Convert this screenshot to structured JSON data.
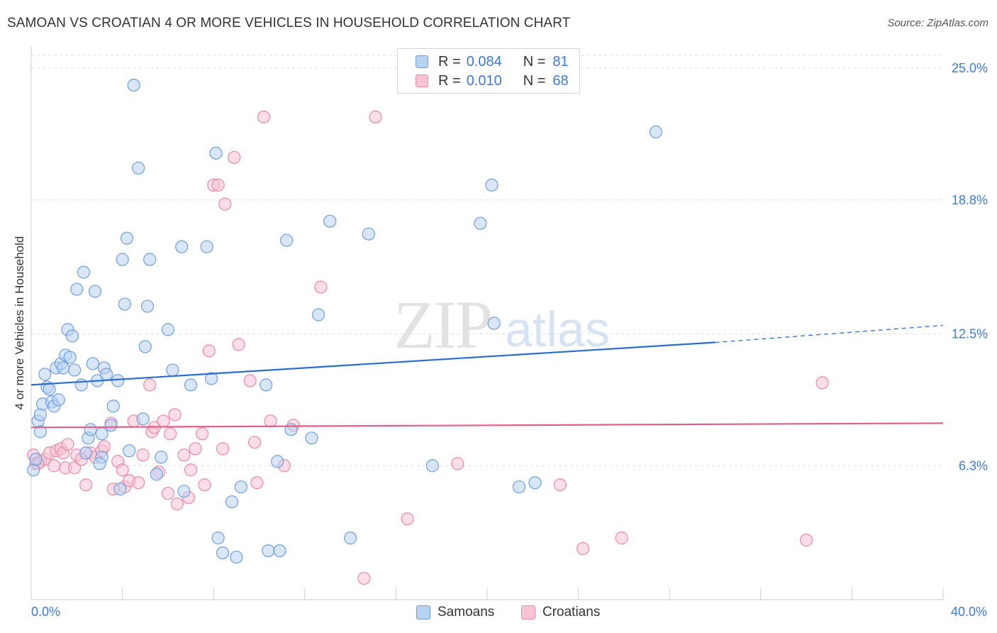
{
  "title": "SAMOAN VS CROATIAN 4 OR MORE VEHICLES IN HOUSEHOLD CORRELATION CHART",
  "source": "Source: ZipAtlas.com",
  "watermark": {
    "zip": "ZIP",
    "atlas": "atlas"
  },
  "colors": {
    "samoan_fill": "#b8d2f2",
    "samoan_stroke": "#6f9fdb",
    "samoan_line": "#2a6fd0",
    "croatian_fill": "#f8c3d3",
    "croatian_stroke": "#e88aa8",
    "croatian_line": "#e0608a",
    "axis_label": "#3d7ad6",
    "grid": "#dddddd"
  },
  "legend_top": {
    "rows": [
      {
        "r_label": "R =",
        "r_value": "0.084",
        "n_label": "N =",
        "n_value": "81"
      },
      {
        "r_label": "R =",
        "r_value": "0.010",
        "n_label": "N =",
        "n_value": "68"
      }
    ]
  },
  "legend_bottom": [
    "Samoans",
    "Croatians"
  ],
  "chart_data": {
    "type": "scatter",
    "title": "SAMOAN VS CROATIAN 4 OR MORE VEHICLES IN HOUSEHOLD CORRELATION CHART",
    "xlabel": "",
    "ylabel": "4 or more Vehicles in Household",
    "xlim": [
      0,
      40
    ],
    "ylim": [
      0,
      25
    ],
    "x_tick_labels": [
      "0.0%",
      "40.0%"
    ],
    "y_ticks": [
      6.3,
      12.5,
      18.8,
      25.0
    ],
    "y_tick_labels": [
      "6.3%",
      "12.5%",
      "18.8%",
      "25.0%"
    ],
    "grid": true,
    "legend_placement": "top-center",
    "series": [
      {
        "name": "Samoans",
        "r": 0.084,
        "n": 81,
        "trend": {
          "x_start": 0,
          "y_start": 10.1,
          "x_solid_end": 30.0,
          "y_solid_end": 12.1,
          "x_end": 40,
          "y_end": 12.9
        },
        "points": [
          [
            0.1,
            6.1
          ],
          [
            0.3,
            8.4
          ],
          [
            0.4,
            8.7
          ],
          [
            0.5,
            9.2
          ],
          [
            0.6,
            10.6
          ],
          [
            0.7,
            10.0
          ],
          [
            0.8,
            9.9
          ],
          [
            0.9,
            9.3
          ],
          [
            1.0,
            9.1
          ],
          [
            1.1,
            10.9
          ],
          [
            1.2,
            9.4
          ],
          [
            1.3,
            11.1
          ],
          [
            1.4,
            10.9
          ],
          [
            1.5,
            11.5
          ],
          [
            1.6,
            12.7
          ],
          [
            1.7,
            11.4
          ],
          [
            1.8,
            12.4
          ],
          [
            1.9,
            10.8
          ],
          [
            2.0,
            14.6
          ],
          [
            2.2,
            10.1
          ],
          [
            2.3,
            15.4
          ],
          [
            2.5,
            7.6
          ],
          [
            2.6,
            8.0
          ],
          [
            2.7,
            11.1
          ],
          [
            2.8,
            14.5
          ],
          [
            2.9,
            10.3
          ],
          [
            3.1,
            7.8
          ],
          [
            3.1,
            6.7
          ],
          [
            3.2,
            10.9
          ],
          [
            3.3,
            10.6
          ],
          [
            3.5,
            8.2
          ],
          [
            3.6,
            9.1
          ],
          [
            3.8,
            10.3
          ],
          [
            3.9,
            5.2
          ],
          [
            4.0,
            16.0
          ],
          [
            4.1,
            13.9
          ],
          [
            4.2,
            17.0
          ],
          [
            4.3,
            7.0
          ],
          [
            4.5,
            24.2
          ],
          [
            4.7,
            20.3
          ],
          [
            4.9,
            8.5
          ],
          [
            5.0,
            11.9
          ],
          [
            5.1,
            13.8
          ],
          [
            5.2,
            16.0
          ],
          [
            5.7,
            6.7
          ],
          [
            6.0,
            12.7
          ],
          [
            6.2,
            10.8
          ],
          [
            6.6,
            16.6
          ],
          [
            6.7,
            5.1
          ],
          [
            7.0,
            10.1
          ],
          [
            7.7,
            16.6
          ],
          [
            7.9,
            10.4
          ],
          [
            8.1,
            21.0
          ],
          [
            8.2,
            2.9
          ],
          [
            8.4,
            2.2
          ],
          [
            8.8,
            4.6
          ],
          [
            9.0,
            2.0
          ],
          [
            9.2,
            5.3
          ],
          [
            10.3,
            10.1
          ],
          [
            10.4,
            2.3
          ],
          [
            10.8,
            6.5
          ],
          [
            10.9,
            2.3
          ],
          [
            11.2,
            16.9
          ],
          [
            11.4,
            8.0
          ],
          [
            12.3,
            7.6
          ],
          [
            12.6,
            13.4
          ],
          [
            13.1,
            17.8
          ],
          [
            14.0,
            2.9
          ],
          [
            14.8,
            17.2
          ],
          [
            17.6,
            6.3
          ],
          [
            19.7,
            17.7
          ],
          [
            20.2,
            19.5
          ],
          [
            20.3,
            13.0
          ],
          [
            21.4,
            5.3
          ],
          [
            22.1,
            5.5
          ],
          [
            27.4,
            22.0
          ],
          [
            0.2,
            6.6
          ],
          [
            0.4,
            7.9
          ],
          [
            2.4,
            6.9
          ],
          [
            3.0,
            6.4
          ],
          [
            5.5,
            5.9
          ]
        ]
      },
      {
        "name": "Croatians",
        "r": 0.01,
        "n": 68,
        "trend": {
          "x_start": 0,
          "y_start": 8.1,
          "x_end": 40,
          "y_end": 8.3
        },
        "points": [
          [
            0.1,
            6.8
          ],
          [
            0.2,
            6.4
          ],
          [
            0.4,
            6.5
          ],
          [
            0.6,
            6.6
          ],
          [
            0.8,
            6.9
          ],
          [
            1.0,
            6.3
          ],
          [
            1.1,
            7.0
          ],
          [
            1.3,
            7.1
          ],
          [
            1.4,
            6.9
          ],
          [
            1.5,
            6.2
          ],
          [
            1.6,
            7.3
          ],
          [
            1.9,
            6.2
          ],
          [
            2.0,
            6.8
          ],
          [
            2.2,
            6.6
          ],
          [
            2.4,
            5.4
          ],
          [
            2.6,
            6.9
          ],
          [
            2.8,
            6.7
          ],
          [
            3.1,
            7.0
          ],
          [
            3.2,
            7.2
          ],
          [
            3.5,
            8.3
          ],
          [
            3.6,
            5.2
          ],
          [
            3.8,
            6.5
          ],
          [
            4.0,
            6.1
          ],
          [
            4.1,
            5.3
          ],
          [
            4.3,
            5.6
          ],
          [
            4.5,
            8.4
          ],
          [
            4.7,
            5.5
          ],
          [
            4.9,
            6.8
          ],
          [
            5.2,
            10.1
          ],
          [
            5.3,
            7.9
          ],
          [
            5.4,
            8.1
          ],
          [
            5.6,
            6.0
          ],
          [
            5.8,
            8.4
          ],
          [
            6.0,
            5.0
          ],
          [
            6.1,
            7.8
          ],
          [
            6.3,
            8.7
          ],
          [
            6.4,
            4.5
          ],
          [
            6.7,
            6.8
          ],
          [
            6.9,
            4.8
          ],
          [
            7.0,
            6.1
          ],
          [
            7.2,
            7.1
          ],
          [
            7.5,
            7.8
          ],
          [
            7.6,
            5.4
          ],
          [
            7.8,
            11.7
          ],
          [
            8.0,
            19.5
          ],
          [
            8.2,
            19.5
          ],
          [
            8.4,
            7.1
          ],
          [
            8.5,
            18.6
          ],
          [
            8.9,
            20.8
          ],
          [
            9.1,
            12.0
          ],
          [
            9.6,
            10.3
          ],
          [
            9.8,
            7.4
          ],
          [
            9.9,
            5.5
          ],
          [
            10.2,
            22.7
          ],
          [
            10.5,
            8.4
          ],
          [
            11.1,
            6.3
          ],
          [
            11.5,
            8.2
          ],
          [
            12.7,
            14.7
          ],
          [
            14.6,
            1.0
          ],
          [
            15.1,
            22.7
          ],
          [
            16.5,
            3.8
          ],
          [
            18.7,
            6.4
          ],
          [
            23.2,
            5.4
          ],
          [
            24.2,
            2.4
          ],
          [
            25.9,
            2.9
          ],
          [
            34.0,
            2.8
          ],
          [
            34.7,
            10.2
          ],
          [
            0.3,
            6.4
          ]
        ]
      }
    ]
  }
}
